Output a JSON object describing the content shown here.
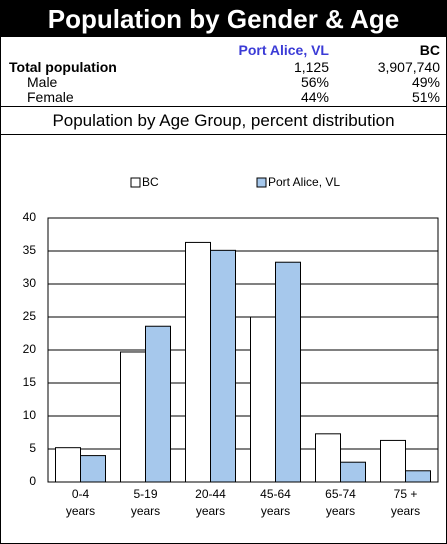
{
  "header": {
    "title": "Population by Gender & Age"
  },
  "table": {
    "columns": [
      "Port Alice, VL",
      "BC"
    ],
    "rows": [
      [
        "Total population",
        "1,125",
        "3,907,740"
      ],
      [
        "Male",
        "56%",
        "49%"
      ],
      [
        "Female",
        "44%",
        "51%"
      ]
    ]
  },
  "chart_data": {
    "type": "bar",
    "title": "Population by Age Group, percent distribution",
    "categories": [
      "0-4 years",
      "5-19 years",
      "20-44 years",
      "45-64 years",
      "65-74 years",
      "75 + years"
    ],
    "series": [
      {
        "name": "BC",
        "color": "#ffffff",
        "values": [
          5.2,
          19.7,
          36.3,
          25.0,
          7.3,
          6.3
        ]
      },
      {
        "name": "Port Alice, VL",
        "color": "#a6c8ec",
        "values": [
          4.0,
          23.6,
          35.1,
          33.3,
          3.0,
          1.7
        ]
      }
    ],
    "ylim": [
      0,
      40
    ],
    "yticks": [
      0,
      5,
      10,
      15,
      20,
      25,
      30,
      35,
      40
    ],
    "grid": true,
    "legend": "top"
  }
}
